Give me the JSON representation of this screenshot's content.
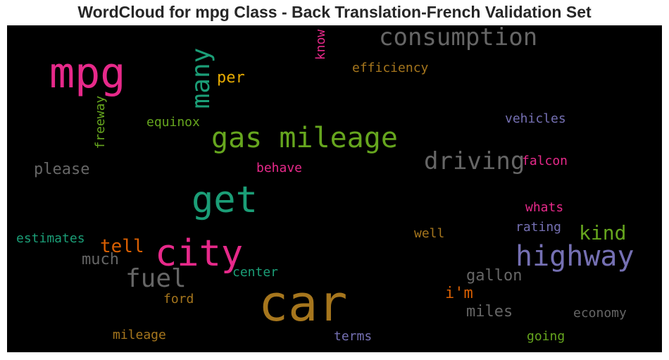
{
  "chart_data": {
    "type": "wordcloud",
    "title": "WordCloud for mpg Class - Back Translation-French Validation Set",
    "background": "#000000",
    "words": [
      {
        "text": "car",
        "color": "#a6761d"
      },
      {
        "text": "mpg",
        "color": "#e7298a"
      },
      {
        "text": "city",
        "color": "#e7298a"
      },
      {
        "text": "get",
        "color": "#1b9e77"
      },
      {
        "text": "highway",
        "color": "#7570b3"
      },
      {
        "text": "gas mileage",
        "color": "#66a61e"
      },
      {
        "text": "consumption",
        "color": "#666666"
      },
      {
        "text": "driving",
        "color": "#666666"
      },
      {
        "text": "fuel",
        "color": "#666666"
      },
      {
        "text": "many",
        "color": "#1b9e77",
        "orientation": "vertical"
      },
      {
        "text": "kind",
        "color": "#66a61e"
      },
      {
        "text": "tell",
        "color": "#d95f02"
      },
      {
        "text": "much",
        "color": "#666666"
      },
      {
        "text": "gallon",
        "color": "#666666"
      },
      {
        "text": "miles",
        "color": "#666666"
      },
      {
        "text": "please",
        "color": "#666666"
      },
      {
        "text": "i'm",
        "color": "#d95f02"
      },
      {
        "text": "per",
        "color": "#e6ab02"
      },
      {
        "text": "efficiency",
        "color": "#a6761d"
      },
      {
        "text": "vehicles",
        "color": "#7570b3"
      },
      {
        "text": "falcon",
        "color": "#e7298a"
      },
      {
        "text": "equinox",
        "color": "#66a61e"
      },
      {
        "text": "freeway",
        "color": "#66a61e",
        "orientation": "vertical"
      },
      {
        "text": "know",
        "color": "#e7298a",
        "orientation": "vertical"
      },
      {
        "text": "behave",
        "color": "#e7298a"
      },
      {
        "text": "whats",
        "color": "#e7298a"
      },
      {
        "text": "rating",
        "color": "#7570b3"
      },
      {
        "text": "well",
        "color": "#a6761d"
      },
      {
        "text": "estimates",
        "color": "#1b9e77"
      },
      {
        "text": "center",
        "color": "#1b9e77"
      },
      {
        "text": "ford",
        "color": "#a6761d"
      },
      {
        "text": "economy",
        "color": "#666666"
      },
      {
        "text": "mileage",
        "color": "#a6761d"
      },
      {
        "text": "terms",
        "color": "#7570b3"
      },
      {
        "text": "going",
        "color": "#66a61e"
      }
    ]
  }
}
